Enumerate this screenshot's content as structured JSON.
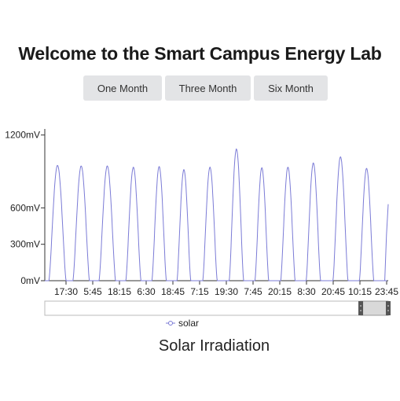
{
  "page": {
    "title": "Welcome to the Smart Campus Energy Lab",
    "caption": "Solar Irradiation"
  },
  "range_buttons": [
    {
      "label": "One Month"
    },
    {
      "label": "Three Month"
    },
    {
      "label": "Six Month"
    }
  ],
  "chart_data": {
    "type": "line",
    "y_ticks": [
      "0mV",
      "300mV",
      "600mV",
      "1200mV"
    ],
    "y_tick_values": [
      0,
      300,
      600,
      1200
    ],
    "ylim": [
      0,
      1250
    ],
    "x_ticks": [
      "17:30",
      "5:45",
      "18:15",
      "6:30",
      "18:45",
      "7:15",
      "19:30",
      "7:45",
      "20:15",
      "8:30",
      "20:45",
      "10:15",
      "23:45"
    ],
    "series": [
      {
        "name": "solar",
        "color": "#7b7bd6",
        "peaks": [
          {
            "center": 0.037,
            "half_width": 0.025,
            "max": 950
          },
          {
            "center": 0.106,
            "half_width": 0.024,
            "max": 945
          },
          {
            "center": 0.182,
            "half_width": 0.024,
            "max": 945
          },
          {
            "center": 0.258,
            "half_width": 0.022,
            "max": 935
          },
          {
            "center": 0.333,
            "half_width": 0.021,
            "max": 940
          },
          {
            "center": 0.405,
            "half_width": 0.02,
            "max": 915
          },
          {
            "center": 0.481,
            "half_width": 0.021,
            "max": 935
          },
          {
            "center": 0.558,
            "half_width": 0.021,
            "max": 1085
          },
          {
            "center": 0.632,
            "half_width": 0.02,
            "max": 930
          },
          {
            "center": 0.708,
            "half_width": 0.021,
            "max": 935
          },
          {
            "center": 0.782,
            "half_width": 0.021,
            "max": 970
          },
          {
            "center": 0.861,
            "half_width": 0.022,
            "max": 1020
          },
          {
            "center": 0.937,
            "half_width": 0.021,
            "max": 925
          }
        ],
        "end_value": 630
      }
    ],
    "navigator": {
      "selected_start": 0.92,
      "selected_end": 1.0
    },
    "legend_position": "bottom-center"
  }
}
